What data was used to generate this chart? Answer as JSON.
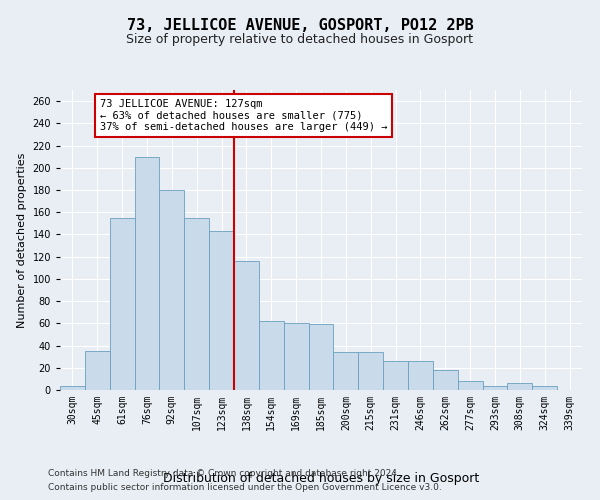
{
  "title": "73, JELLICOE AVENUE, GOSPORT, PO12 2PB",
  "subtitle": "Size of property relative to detached houses in Gosport",
  "xlabel": "Distribution of detached houses by size in Gosport",
  "ylabel": "Number of detached properties",
  "categories": [
    "30sqm",
    "45sqm",
    "61sqm",
    "76sqm",
    "92sqm",
    "107sqm",
    "123sqm",
    "138sqm",
    "154sqm",
    "169sqm",
    "185sqm",
    "200sqm",
    "215sqm",
    "231sqm",
    "246sqm",
    "262sqm",
    "277sqm",
    "293sqm",
    "308sqm",
    "324sqm",
    "339sqm"
  ],
  "values": [
    4,
    35,
    155,
    210,
    180,
    155,
    143,
    116,
    62,
    60,
    59,
    34,
    34,
    26,
    26,
    18,
    8,
    4,
    6,
    4,
    0
  ],
  "bar_color": "#c9daea",
  "bar_edge_color": "#6a9fc0",
  "vline_color": "#cc0000",
  "annotation_text": "73 JELLICOE AVENUE: 127sqm\n← 63% of detached houses are smaller (775)\n37% of semi-detached houses are larger (449) →",
  "annotation_box_color": "#ffffff",
  "annotation_box_edge": "#cc0000",
  "ylim": [
    0,
    270
  ],
  "yticks": [
    0,
    20,
    40,
    60,
    80,
    100,
    120,
    140,
    160,
    180,
    200,
    220,
    240,
    260
  ],
  "footer1": "Contains HM Land Registry data © Crown copyright and database right 2024.",
  "footer2": "Contains public sector information licensed under the Open Government Licence v3.0.",
  "bg_color": "#e8eef4",
  "plot_bg_color": "#e8eef4",
  "grid_color": "#ffffff",
  "title_fontsize": 11,
  "subtitle_fontsize": 9,
  "xlabel_fontsize": 9,
  "ylabel_fontsize": 8,
  "tick_fontsize": 7,
  "footer_fontsize": 6.5
}
